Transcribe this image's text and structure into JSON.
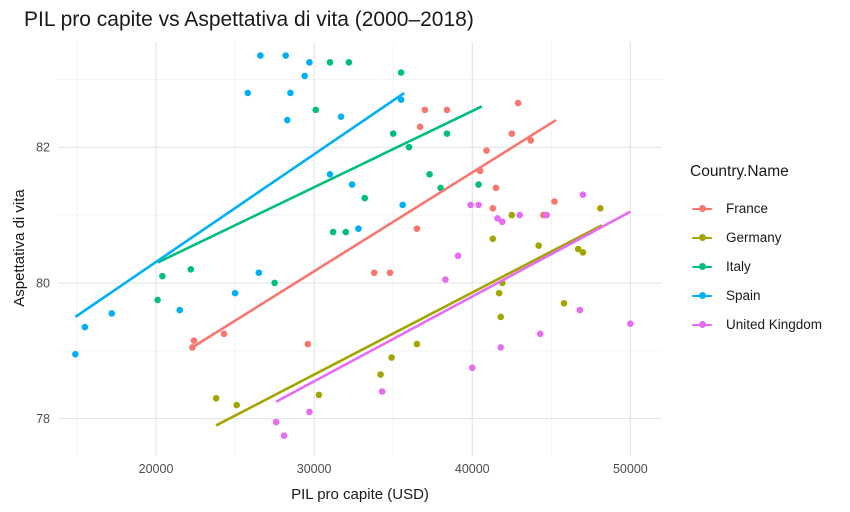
{
  "chart_data": {
    "type": "scatter",
    "title": "PIL pro capite vs Aspettativa di vita (2000–2018)",
    "xlabel": "PIL pro capite (USD)",
    "ylabel": "Aspettativa di vita",
    "xlim": [
      13800,
      52000
    ],
    "ylim": [
      77.45,
      83.55
    ],
    "x_ticks": [
      20000,
      30000,
      40000,
      50000
    ],
    "x_tick_labels": [
      "20000",
      "30000",
      "40000",
      "50000"
    ],
    "y_ticks": [
      78,
      80,
      82
    ],
    "y_tick_labels": [
      "78",
      "80",
      "82"
    ],
    "grid": true,
    "legend": {
      "title": "Country.Name",
      "position": "right"
    },
    "trendline": "linear",
    "series": [
      {
        "name": "France",
        "color": "#F8766D",
        "points": [
          [
            22400,
            79.15
          ],
          [
            22300,
            79.05
          ],
          [
            24300,
            79.25
          ],
          [
            29600,
            79.1
          ],
          [
            33800,
            80.15
          ],
          [
            34800,
            80.15
          ],
          [
            36500,
            80.8
          ],
          [
            37000,
            82.55
          ],
          [
            36700,
            82.3
          ],
          [
            38400,
            82.55
          ],
          [
            40500,
            81.65
          ],
          [
            40900,
            81.95
          ],
          [
            41500,
            81.4
          ],
          [
            41300,
            81.1
          ],
          [
            42500,
            82.2
          ],
          [
            42900,
            82.65
          ],
          [
            43700,
            82.1
          ],
          [
            45200,
            81.2
          ],
          [
            44500,
            81.0
          ]
        ],
        "fit": [
          [
            22300,
            79.05
          ],
          [
            45300,
            82.4
          ]
        ]
      },
      {
        "name": "Germany",
        "color": "#A3A500",
        "points": [
          [
            23800,
            78.3
          ],
          [
            25100,
            78.2
          ],
          [
            30300,
            78.35
          ],
          [
            34200,
            78.65
          ],
          [
            34900,
            78.9
          ],
          [
            36500,
            79.1
          ],
          [
            41300,
            80.65
          ],
          [
            41700,
            79.85
          ],
          [
            41900,
            80.0
          ],
          [
            41800,
            79.5
          ],
          [
            42500,
            81.0
          ],
          [
            44200,
            80.55
          ],
          [
            44700,
            81.0
          ],
          [
            45800,
            79.7
          ],
          [
            46700,
            80.5
          ],
          [
            47000,
            80.45
          ],
          [
            48100,
            81.1
          ]
        ],
        "fit": [
          [
            23800,
            77.9
          ],
          [
            48200,
            80.85
          ]
        ]
      },
      {
        "name": "Italy",
        "color": "#00BF7D",
        "points": [
          [
            20100,
            79.75
          ],
          [
            20400,
            80.1
          ],
          [
            22200,
            80.2
          ],
          [
            27500,
            80.0
          ],
          [
            30100,
            82.55
          ],
          [
            31000,
            83.25
          ],
          [
            32200,
            83.25
          ],
          [
            31200,
            80.75
          ],
          [
            32000,
            80.75
          ],
          [
            33200,
            81.25
          ],
          [
            35000,
            82.2
          ],
          [
            35500,
            83.1
          ],
          [
            36000,
            82.0
          ],
          [
            37300,
            81.6
          ],
          [
            38000,
            81.4
          ],
          [
            38400,
            82.2
          ],
          [
            40400,
            81.45
          ]
        ],
        "fit": [
          [
            20100,
            80.3
          ],
          [
            40600,
            82.6
          ]
        ]
      },
      {
        "name": "Spain",
        "color": "#00B0F6",
        "points": [
          [
            14900,
            78.95
          ],
          [
            15500,
            79.35
          ],
          [
            17200,
            79.55
          ],
          [
            21500,
            79.6
          ],
          [
            25000,
            79.85
          ],
          [
            26500,
            80.15
          ],
          [
            25800,
            82.8
          ],
          [
            26600,
            83.35
          ],
          [
            28500,
            82.8
          ],
          [
            28300,
            82.4
          ],
          [
            29400,
            83.05
          ],
          [
            28200,
            83.35
          ],
          [
            29700,
            83.25
          ],
          [
            31000,
            81.6
          ],
          [
            31700,
            82.45
          ],
          [
            32400,
            81.45
          ],
          [
            32800,
            80.8
          ],
          [
            35500,
            82.7
          ],
          [
            35600,
            81.15
          ]
        ],
        "fit": [
          [
            14900,
            79.5
          ],
          [
            35700,
            82.8
          ]
        ]
      },
      {
        "name": "United Kingdom",
        "color": "#E76BF3",
        "points": [
          [
            27600,
            77.95
          ],
          [
            28100,
            77.75
          ],
          [
            29700,
            78.1
          ],
          [
            34300,
            78.4
          ],
          [
            39100,
            80.4
          ],
          [
            38300,
            80.05
          ],
          [
            40000,
            78.75
          ],
          [
            39900,
            81.15
          ],
          [
            40400,
            81.15
          ],
          [
            41600,
            80.95
          ],
          [
            41800,
            79.05
          ],
          [
            41900,
            80.9
          ],
          [
            43000,
            81.0
          ],
          [
            44300,
            79.25
          ],
          [
            44700,
            81.0
          ],
          [
            46800,
            79.6
          ],
          [
            47000,
            81.3
          ],
          [
            50000,
            79.4
          ]
        ],
        "fit": [
          [
            27600,
            78.25
          ],
          [
            50000,
            81.05
          ]
        ]
      }
    ]
  }
}
